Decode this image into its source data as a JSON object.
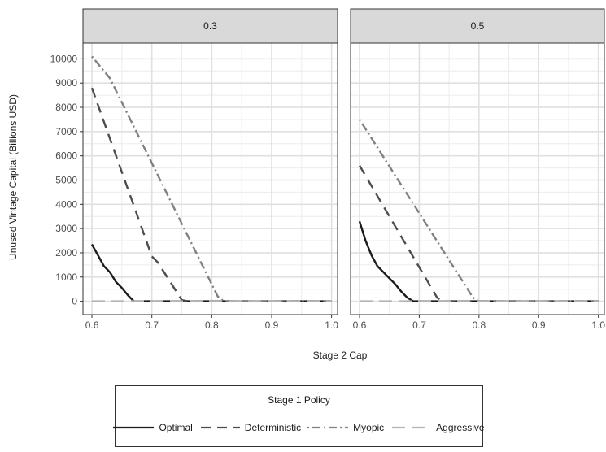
{
  "chart_data": {
    "type": "line",
    "xlabel": "Stage 2 Cap",
    "ylabel": "Unused Vintage Capital (Billions USD)",
    "xlim": [
      0.585,
      1.01
    ],
    "ylim": [
      -550,
      10650
    ],
    "xticks": [
      0.6,
      0.7,
      0.8,
      0.9,
      1.0
    ],
    "xtick_labels": [
      "0.6",
      "0.7",
      "0.8",
      "0.9",
      "1.0"
    ],
    "yticks": [
      0,
      1000,
      2000,
      3000,
      4000,
      5000,
      6000,
      7000,
      8000,
      9000,
      10000
    ],
    "ytick_labels": [
      "0",
      "1000",
      "2000",
      "3000",
      "4000",
      "5000",
      "6000",
      "7000",
      "8000",
      "9000",
      "10000"
    ],
    "grid": true,
    "legend": {
      "title": "Stage 1 Policy",
      "position": "bottom",
      "entries": [
        "Optimal",
        "Deterministic",
        "Myopic",
        "Aggressive"
      ]
    },
    "series_styles": [
      {
        "name": "Optimal",
        "color": "#1a1a1a",
        "dash": "solid"
      },
      {
        "name": "Deterministic",
        "color": "#4d4d4d",
        "dash": "dashed"
      },
      {
        "name": "Myopic",
        "color": "#808080",
        "dash": "dotdash"
      },
      {
        "name": "Aggressive",
        "color": "#b3b3b3",
        "dash": "longdash"
      }
    ],
    "panels": [
      {
        "strip": "0.3",
        "series": [
          {
            "name": "Optimal",
            "x": [
              0.6,
              0.61,
              0.62,
              0.63,
              0.64,
              0.65,
              0.66,
              0.67,
              1.0
            ],
            "y": [
              2350,
              1900,
              1450,
              1200,
              800,
              550,
              250,
              0,
              0
            ]
          },
          {
            "name": "Deterministic",
            "x": [
              0.6,
              0.7,
              0.71,
              0.75,
              0.76,
              1.0
            ],
            "y": [
              8800,
              1850,
              1600,
              50,
              0,
              0
            ]
          },
          {
            "name": "Myopic",
            "x": [
              0.6,
              0.63,
              0.81,
              0.82,
              1.0
            ],
            "y": [
              10100,
              9200,
              200,
              0,
              0
            ]
          },
          {
            "name": "Aggressive",
            "x": [
              0.6,
              1.0
            ],
            "y": [
              0,
              0
            ]
          }
        ]
      },
      {
        "strip": "0.5",
        "series": [
          {
            "name": "Optimal",
            "x": [
              0.6,
              0.61,
              0.62,
              0.63,
              0.64,
              0.65,
              0.66,
              0.67,
              0.68,
              0.69,
              1.0
            ],
            "y": [
              3300,
              2500,
              1900,
              1450,
              1200,
              950,
              700,
              400,
              150,
              0,
              0
            ]
          },
          {
            "name": "Deterministic",
            "x": [
              0.6,
              0.73,
              0.74,
              1.0
            ],
            "y": [
              5600,
              150,
              0,
              0
            ]
          },
          {
            "name": "Myopic",
            "x": [
              0.6,
              0.79,
              0.8,
              1.0
            ],
            "y": [
              7500,
              150,
              0,
              0
            ]
          },
          {
            "name": "Aggressive",
            "x": [
              0.6,
              1.0
            ],
            "y": [
              0,
              0
            ]
          }
        ]
      }
    ]
  }
}
